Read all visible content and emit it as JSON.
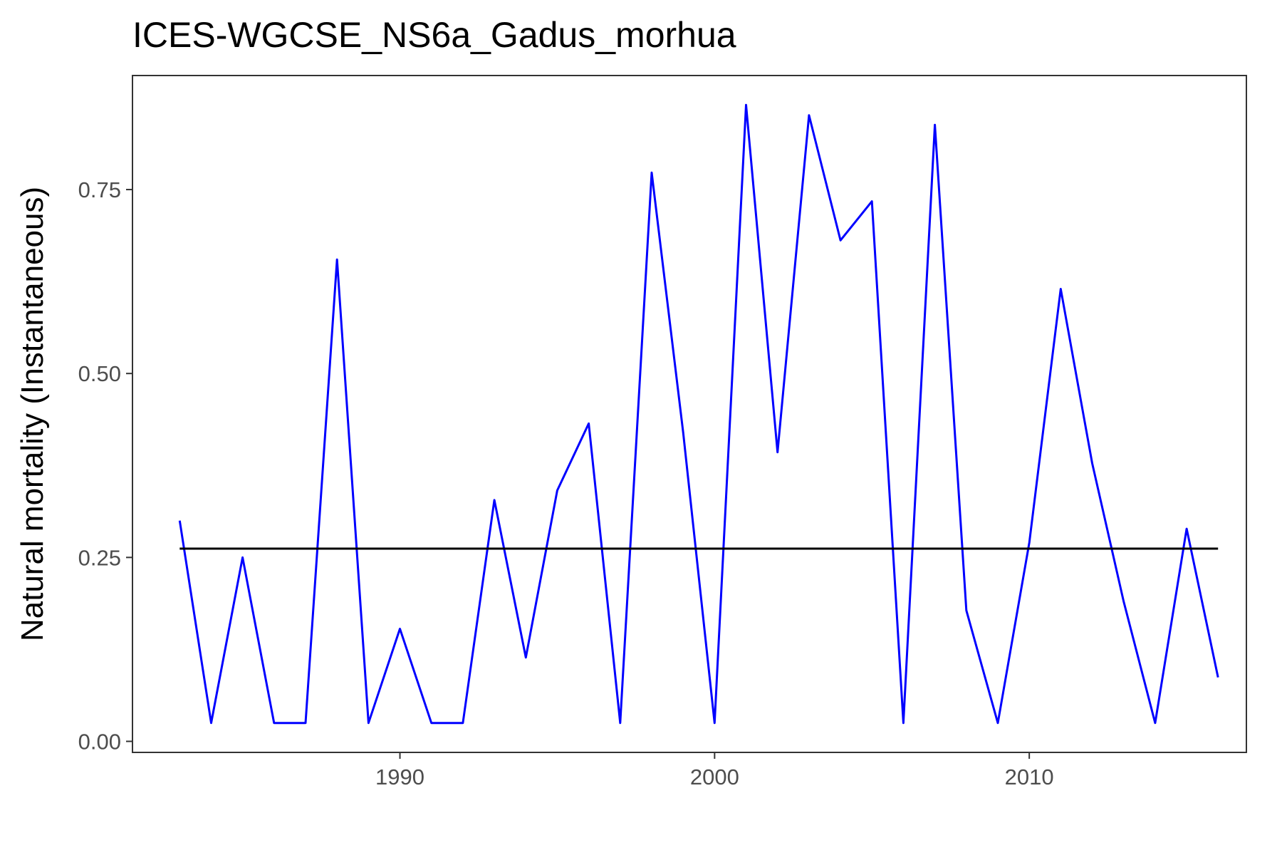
{
  "chart_data": {
    "type": "line",
    "title": "ICES-WGCSE_NS6a_Gadus_morhua",
    "xlabel": "",
    "ylabel": "Natural mortality (Instantaneous)",
    "xlim": [
      1981.5,
      2016.9
    ],
    "ylim": [
      -0.015,
      0.905
    ],
    "x_ticks": [
      1990,
      2000,
      2010
    ],
    "x_tick_labels": [
      "1990",
      "2000",
      "2010"
    ],
    "y_ticks": [
      0.0,
      0.25,
      0.5,
      0.75
    ],
    "y_tick_labels": [
      "0.00",
      "0.25",
      "0.50",
      "0.75"
    ],
    "grid": false,
    "series": [
      {
        "color": "#0000ff",
        "x": [
          1983,
          1984,
          1985,
          1986,
          1987,
          1988,
          1989,
          1990,
          1991,
          1992,
          1993,
          1994,
          1995,
          1996,
          1997,
          1998,
          1999,
          2000,
          2001,
          2002,
          2003,
          2004,
          2005,
          2006,
          2007,
          2008,
          2009,
          2010,
          2011,
          2012,
          2013,
          2014,
          2015,
          2016
        ],
        "y": [
          0.3,
          0.025,
          0.25,
          0.025,
          0.025,
          0.655,
          0.025,
          0.153,
          0.025,
          0.025,
          0.328,
          0.114,
          0.341,
          0.432,
          0.025,
          0.773,
          0.42,
          0.025,
          0.865,
          0.393,
          0.851,
          0.681,
          0.734,
          0.025,
          0.838,
          0.178,
          0.025,
          0.27,
          0.615,
          0.378,
          0.19,
          0.025,
          0.289,
          0.087
        ]
      },
      {
        "color": "#000000",
        "x": [
          1983,
          2016
        ],
        "y": [
          0.262,
          0.262
        ]
      }
    ]
  }
}
